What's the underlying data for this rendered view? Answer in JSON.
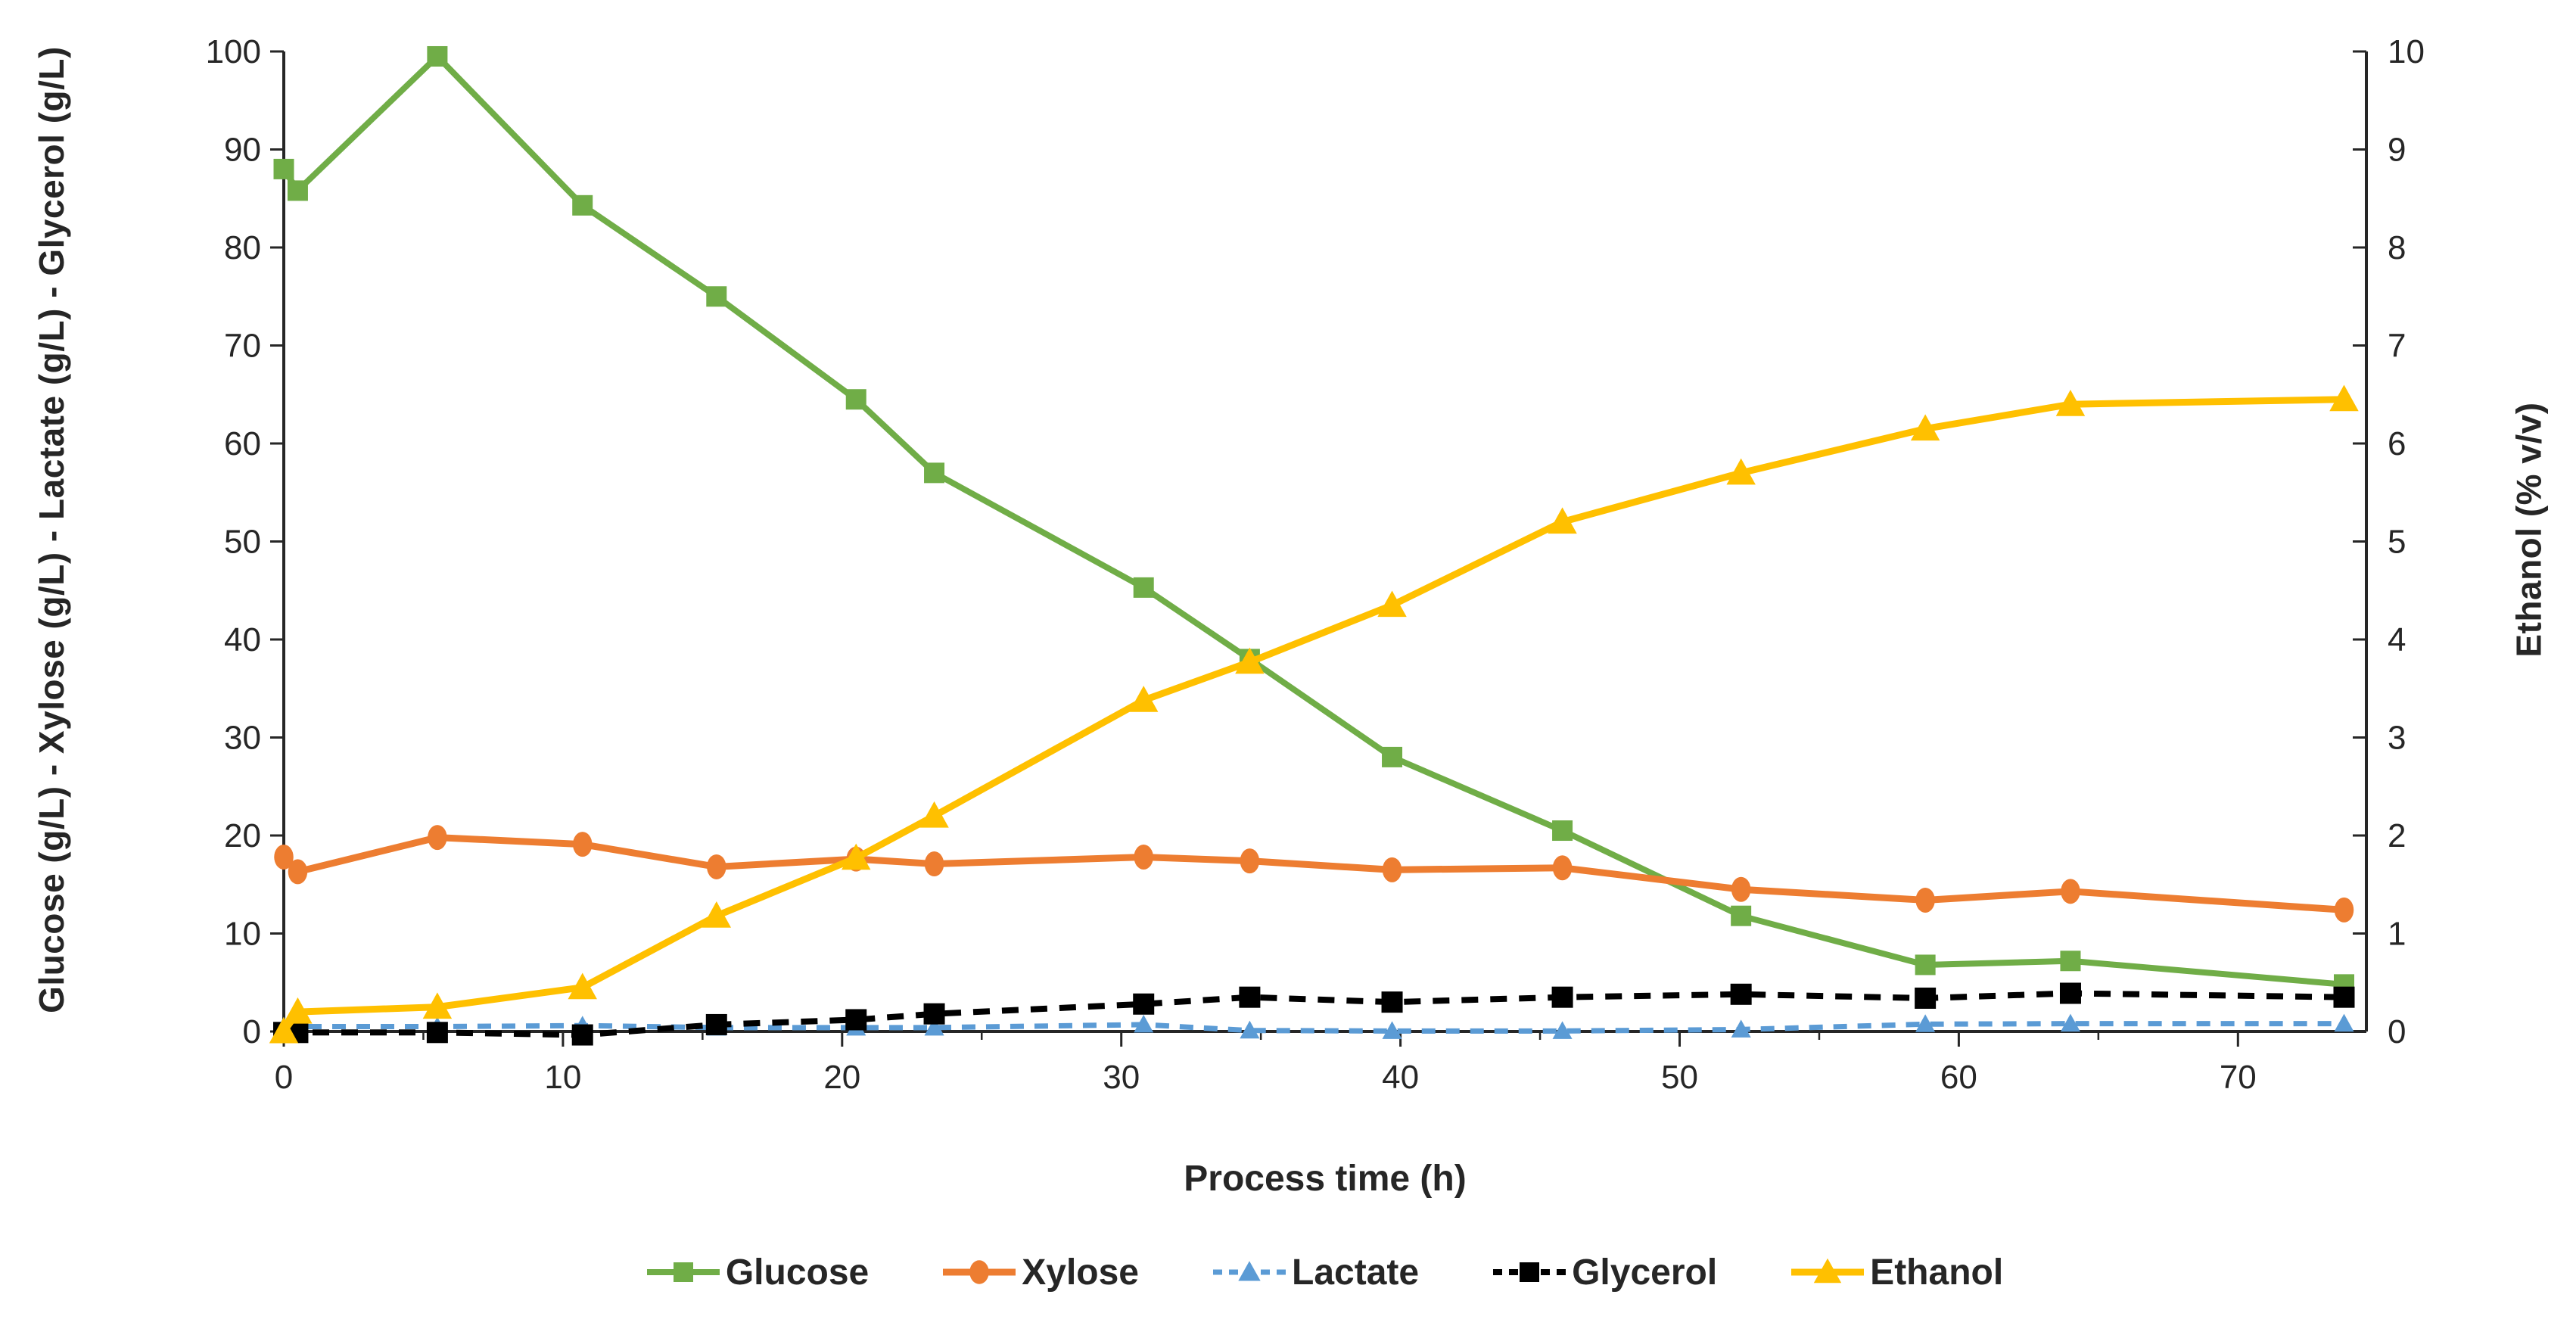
{
  "chart_data": {
    "type": "line",
    "title": "",
    "x_axis": {
      "label": "Process time (h)",
      "min": 0,
      "max": 74.6,
      "major_ticks": [
        0,
        10,
        20,
        30,
        40,
        50,
        60,
        70
      ],
      "minor_tick_step": 5
    },
    "left_y_axis": {
      "label": "Glucose (g/L) - Xylose (g/L) - Lactate (g/L) - Glycerol (g/L)",
      "min": 0,
      "max": 100,
      "ticks": [
        0,
        10,
        20,
        30,
        40,
        50,
        60,
        70,
        80,
        90,
        100
      ]
    },
    "right_y_axis": {
      "label": "Ethanol (% v/v)",
      "min": 0,
      "max": 10,
      "ticks": [
        0,
        1,
        2,
        3,
        4,
        5,
        6,
        7,
        8,
        9,
        10
      ]
    },
    "x": [
      0,
      0.5,
      5.5,
      10.7,
      15.5,
      20.5,
      23.3,
      30.8,
      34.6,
      39.7,
      45.8,
      52.2,
      58.8,
      64,
      73.8
    ],
    "series": [
      {
        "name": "Glucose",
        "axis": "left",
        "color": "#70AD47",
        "marker": "square",
        "line": "solid",
        "values": [
          88,
          85.8,
          99.5,
          84.3,
          75,
          64.5,
          57,
          45.3,
          38,
          28,
          20.5,
          11.8,
          6.8,
          7.2,
          4.8
        ]
      },
      {
        "name": "Xylose",
        "axis": "left",
        "color": "#ED7D31",
        "marker": "circle",
        "line": "solid",
        "values": [
          17.8,
          16.3,
          19.8,
          19.1,
          16.8,
          17.6,
          17.1,
          17.8,
          17.4,
          16.5,
          16.7,
          14.5,
          13.4,
          14.3,
          12.4
        ]
      },
      {
        "name": "Lactate",
        "axis": "left",
        "color": "#5B9BD5",
        "marker": "triangle",
        "line": "dashed",
        "values": [
          0.5,
          0.5,
          0.5,
          0.6,
          0.4,
          0.4,
          0.4,
          0.7,
          0.1,
          0.05,
          0.05,
          0.2,
          0.75,
          0.8,
          0.8
        ]
      },
      {
        "name": "Glycerol",
        "axis": "left",
        "color": "#000000",
        "marker": "square",
        "line": "dashed",
        "values": [
          -0.1,
          -0.1,
          -0.1,
          -0.35,
          0.7,
          1.2,
          1.8,
          2.8,
          3.5,
          3.0,
          3.5,
          3.8,
          3.4,
          3.9,
          3.5
        ]
      },
      {
        "name": "Ethanol",
        "axis": "right",
        "color": "#FFC000",
        "marker": "triangle",
        "line": "solid",
        "values": [
          0.0,
          0.2,
          0.25,
          0.45,
          1.18,
          1.77,
          2.2,
          3.38,
          3.77,
          4.35,
          5.2,
          5.7,
          6.15,
          6.4,
          6.45
        ]
      }
    ],
    "legend_position": "bottom",
    "grid": false
  },
  "colors": {
    "axis": "#262626",
    "text": "#262626",
    "background": "#FFFFFF"
  }
}
